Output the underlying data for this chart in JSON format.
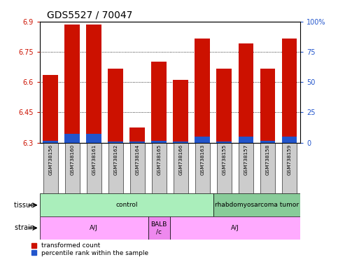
{
  "title": "GDS5527 / 70047",
  "samples": [
    "GSM738156",
    "GSM738160",
    "GSM738161",
    "GSM738162",
    "GSM738164",
    "GSM738165",
    "GSM738166",
    "GSM738163",
    "GSM738155",
    "GSM738157",
    "GSM738158",
    "GSM738159"
  ],
  "red_tops": [
    6.635,
    6.885,
    6.885,
    6.665,
    6.375,
    6.7,
    6.61,
    6.815,
    6.665,
    6.79,
    6.665,
    6.815
  ],
  "blue_tops": [
    6.308,
    6.345,
    6.345,
    6.305,
    6.305,
    6.308,
    6.305,
    6.33,
    6.305,
    6.33,
    6.308,
    6.33
  ],
  "baseline": 6.3,
  "ylim_left": [
    6.3,
    6.9
  ],
  "ylim_right": [
    0,
    100
  ],
  "yticks_left": [
    6.3,
    6.45,
    6.6,
    6.75,
    6.9
  ],
  "yticks_right": [
    0,
    25,
    50,
    75,
    100
  ],
  "red_color": "#CC1100",
  "blue_color": "#2255CC",
  "tissue_groups": [
    {
      "label": "control",
      "start": 0,
      "end": 8,
      "color": "#AAEEBB"
    },
    {
      "label": "rhabdomyosarcoma tumor",
      "start": 8,
      "end": 12,
      "color": "#88CC99"
    }
  ],
  "strain_groups": [
    {
      "label": "A/J",
      "start": 0,
      "end": 5,
      "color": "#FFAAFF"
    },
    {
      "label": "BALB\n/c",
      "start": 5,
      "end": 6,
      "color": "#EE88EE"
    },
    {
      "label": "A/J",
      "start": 6,
      "end": 12,
      "color": "#FFAAFF"
    }
  ],
  "tissue_label": "tissue",
  "strain_label": "strain",
  "legend_red": "transformed count",
  "legend_blue": "percentile rank within the sample",
  "bar_width": 0.7,
  "tick_color_left": "#CC1100",
  "tick_color_right": "#2255CC",
  "xticklabels_bgcolor": "#CCCCCC",
  "plot_bgcolor": "#FFFFFF",
  "grid_color": "#000000",
  "title_fontsize": 10,
  "axis_fontsize": 7,
  "label_fontsize": 7
}
